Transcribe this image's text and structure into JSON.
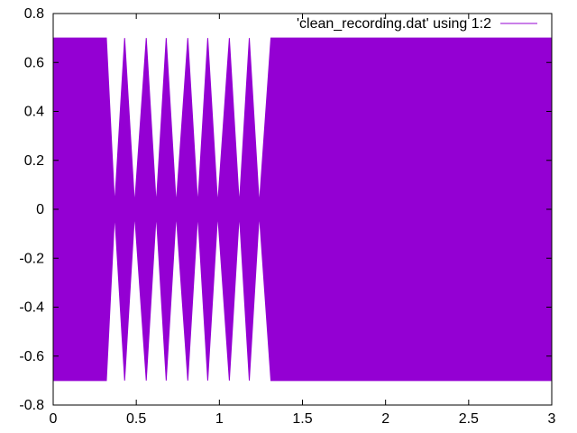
{
  "chart_data": {
    "type": "area",
    "title": "",
    "xlabel": "",
    "ylabel": "",
    "xlim": [
      0,
      3
    ],
    "ylim": [
      -0.8,
      0.8
    ],
    "grid": false,
    "x_ticks": [
      "0",
      "0.5",
      "1",
      "1.5",
      "2",
      "2.5",
      "3"
    ],
    "y_ticks": [
      "0.8",
      "0.6",
      "0.4",
      "0.2",
      "0",
      "-0.2",
      "-0.4",
      "-0.6",
      "-0.8"
    ],
    "legend_position": "top-right",
    "series": [
      {
        "name": "'clean_recording.dat' using 1:2",
        "color": "#9400d3",
        "envelope": {
          "x": [
            0,
            0.32,
            0.37,
            0.43,
            0.49,
            0.56,
            0.62,
            0.68,
            0.74,
            0.81,
            0.87,
            0.93,
            0.99,
            1.06,
            1.12,
            1.18,
            1.24,
            1.31,
            3.0
          ],
          "amplitude": [
            0.7,
            0.7,
            0.02,
            0.7,
            0.02,
            0.7,
            0.02,
            0.7,
            0.02,
            0.7,
            0.02,
            0.7,
            0.02,
            0.7,
            0.02,
            0.7,
            0.02,
            0.7,
            0.7
          ]
        }
      }
    ]
  }
}
